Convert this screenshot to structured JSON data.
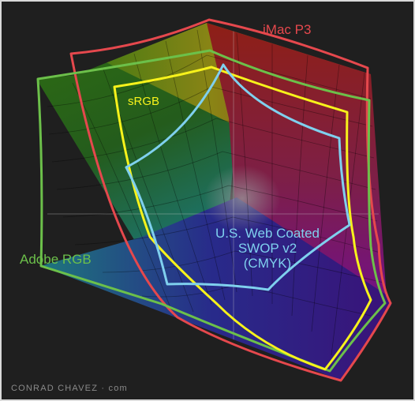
{
  "colors": {
    "background": "#1f1f1f",
    "frame": "#d9d9d9",
    "imac_p3": "#e5484d",
    "adobe_rgb": "#6cc04a",
    "srgb": "#f7f21b",
    "swop": "#7fd0ee",
    "credit": "#8a8a8a"
  },
  "labels": {
    "imac_p3": "iMac P3",
    "srgb": "sRGB",
    "adobe_rgb": "Adobe RGB",
    "swop_line1": "U.S. Web Coated",
    "swop_line2": "SWOP v2",
    "swop_line3": "(CMYK)"
  },
  "credit": "CONRAD CHAVEZ · com"
}
